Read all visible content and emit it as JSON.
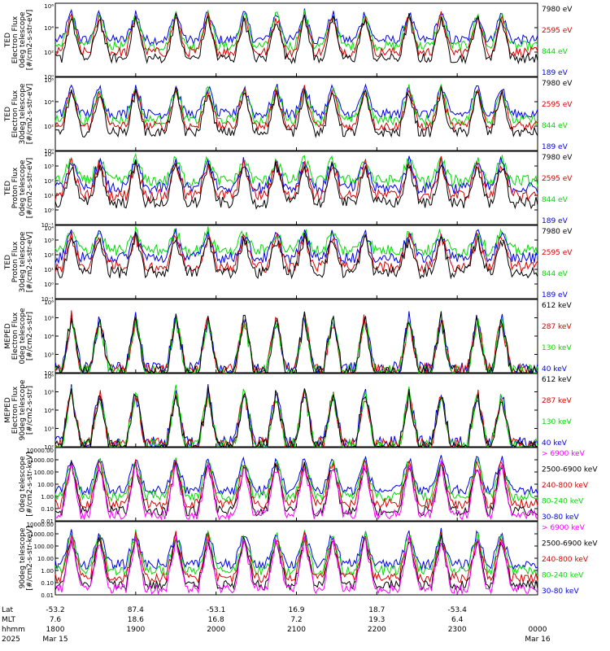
{
  "chart_data": [
    {
      "type": "line",
      "title": "",
      "ylabel_lines": [
        "TED",
        "Electron Flux",
        "0deg telescope",
        "[#/cm2-s-str-eV]"
      ],
      "yscale": "log",
      "ylim": [
        1,
        1000000
      ],
      "ytick_labels": [
        "10⁶",
        "10⁴",
        "10²",
        "10⁰"
      ],
      "series": [
        {
          "name": "7980 eV",
          "color": "#000000",
          "level": 1.5
        },
        {
          "name": "2595 eV",
          "color": "#dd0000",
          "level": 2.0
        },
        {
          "name": "844 eV",
          "color": "#00dd00",
          "level": 2.5
        },
        {
          "name": "189 eV",
          "color": "#0000ee",
          "level": 3.0
        }
      ]
    },
    {
      "type": "line",
      "title": "",
      "ylabel_lines": [
        "TED",
        "Electron Flux",
        "30deg telescope",
        "[#/cm2-s-str-eV]"
      ],
      "yscale": "log",
      "ylim": [
        1,
        1000000
      ],
      "ytick_labels": [
        "10⁶",
        "10⁴",
        "10²",
        "10⁰"
      ],
      "series": [
        {
          "name": "7980 eV",
          "color": "#000000",
          "level": 1.5
        },
        {
          "name": "2595 eV",
          "color": "#dd0000",
          "level": 2.0
        },
        {
          "name": "844 eV",
          "color": "#00dd00",
          "level": 2.5
        },
        {
          "name": "189 eV",
          "color": "#0000ee",
          "level": 3.0
        }
      ]
    },
    {
      "type": "line",
      "title": "",
      "ylabel_lines": [
        "TED",
        "Proton Flux",
        "0deg telescope",
        "[#/cm2-s-str-eV]"
      ],
      "yscale": "log",
      "ylim": [
        0.1,
        10000
      ],
      "ytick_labels": [
        "10⁴",
        "10³",
        "10²",
        "10¹",
        "10⁰",
        "10⁻¹"
      ],
      "series": [
        {
          "name": "7980 eV",
          "color": "#000000",
          "level": 0.5
        },
        {
          "name": "2595 eV",
          "color": "#dd0000",
          "level": 1.0
        },
        {
          "name": "844 eV",
          "color": "#00dd00",
          "level": 2.0
        },
        {
          "name": "189 eV",
          "color": "#0000ee",
          "level": 1.5
        }
      ]
    },
    {
      "type": "line",
      "title": "",
      "ylabel_lines": [
        "TED",
        "Proton Flux",
        "30deg telescope",
        "[#/cm2-s-str-eV]"
      ],
      "yscale": "log",
      "ylim": [
        0.1,
        10000
      ],
      "ytick_labels": [
        "10⁴",
        "10³",
        "10²",
        "10¹",
        "10⁰",
        "10⁻¹"
      ],
      "series": [
        {
          "name": "7980 eV",
          "color": "#000000",
          "level": 0.8
        },
        {
          "name": "2595 eV",
          "color": "#dd0000",
          "level": 1.2
        },
        {
          "name": "844 eV",
          "color": "#00dd00",
          "level": 2.3
        },
        {
          "name": "189 eV",
          "color": "#0000ee",
          "level": 1.8
        }
      ]
    },
    {
      "type": "line",
      "title": "",
      "ylabel_lines": [
        "MEPED",
        "Electron Flux",
        "0deg telescope",
        "[#/cm2-s-str]"
      ],
      "yscale": "log",
      "ylim": [
        100,
        1000000
      ],
      "ytick_labels": [
        "10⁶",
        "10⁵",
        "10⁴",
        "10³",
        "10²"
      ],
      "series": [
        {
          "name": "612 keV",
          "color": "#000000",
          "level": 2.0
        },
        {
          "name": "287 keV",
          "color": "#dd0000",
          "level": 2.1
        },
        {
          "name": "130 keV",
          "color": "#00dd00",
          "level": 2.05
        },
        {
          "name": "40 keV",
          "color": "#0000ee",
          "level": 2.2
        }
      ]
    },
    {
      "type": "line",
      "title": "",
      "ylabel_lines": [
        "MEPED",
        "Electron Flux",
        "90deg telescope",
        "[#/cm2-s-str]"
      ],
      "yscale": "log",
      "ylim": [
        100,
        1000000
      ],
      "ytick_labels": [
        "10⁶",
        "10⁵",
        "10⁴",
        "10³",
        "10²"
      ],
      "series": [
        {
          "name": "612 keV",
          "color": "#000000",
          "level": 2.0
        },
        {
          "name": "287 keV",
          "color": "#dd0000",
          "level": 2.1
        },
        {
          "name": "130 keV",
          "color": "#00dd00",
          "level": 2.05
        },
        {
          "name": "40 keV",
          "color": "#0000ee",
          "level": 2.2
        }
      ]
    },
    {
      "type": "line",
      "title": "",
      "ylabel_lines": [
        "0deg telescope",
        "[#/cm2-s-str-keV]"
      ],
      "yscale": "log",
      "ylim": [
        0.01,
        10000
      ],
      "ytick_labels": [
        "10000.00",
        "1000.00",
        "100.00",
        "10.00",
        "1.00",
        "0.10",
        "0.01"
      ],
      "series": [
        {
          "name": "> 6900 keV",
          "color": "#ff00ff",
          "level": -1.5
        },
        {
          "name": "2500-6900 keV",
          "color": "#000000",
          "level": -1.2
        },
        {
          "name": "240-800 keV",
          "color": "#dd0000",
          "level": -0.6
        },
        {
          "name": "80-240 keV",
          "color": "#00dd00",
          "level": 0.0
        },
        {
          "name": "30-80 keV",
          "color": "#0000ee",
          "level": 0.5
        }
      ]
    },
    {
      "type": "line",
      "title": "",
      "ylabel_lines": [
        "90deg telescope",
        "[#/cm2-s-str-keV]"
      ],
      "yscale": "log",
      "ylim": [
        0.01,
        10000
      ],
      "ytick_labels": [
        "10000.00",
        "1000.00",
        "100.00",
        "10.00",
        "1.00",
        "0.10",
        "0.01"
      ],
      "series": [
        {
          "name": "> 6900 keV",
          "color": "#ff00ff",
          "level": -1.5
        },
        {
          "name": "2500-6900 keV",
          "color": "#000000",
          "level": -1.2
        },
        {
          "name": "240-800 keV",
          "color": "#dd0000",
          "level": -0.6
        },
        {
          "name": "80-240 keV",
          "color": "#00dd00",
          "level": 0.0
        },
        {
          "name": "30-80 keV",
          "color": "#0000ee",
          "level": 0.5
        }
      ]
    }
  ],
  "axis": {
    "time_hours": [
      18,
      19,
      20,
      21,
      22,
      23,
      24
    ],
    "row_labels": [
      "Lat",
      "MLT",
      "hhmm",
      "2025"
    ],
    "lat": [
      "-53.2",
      "87.4",
      "-53.1",
      "16.9",
      "18.7",
      "-53.4",
      ""
    ],
    "mlt": [
      "7.6",
      "18.6",
      "16.8",
      "7.2",
      "19.3",
      "6.4",
      ""
    ],
    "hhmm": [
      "1800",
      "1900",
      "2000",
      "2100",
      "2200",
      "2300",
      "0000"
    ],
    "date": [
      "Mar 15",
      "",
      "",
      "",
      "",
      "",
      "Mar 16"
    ]
  }
}
